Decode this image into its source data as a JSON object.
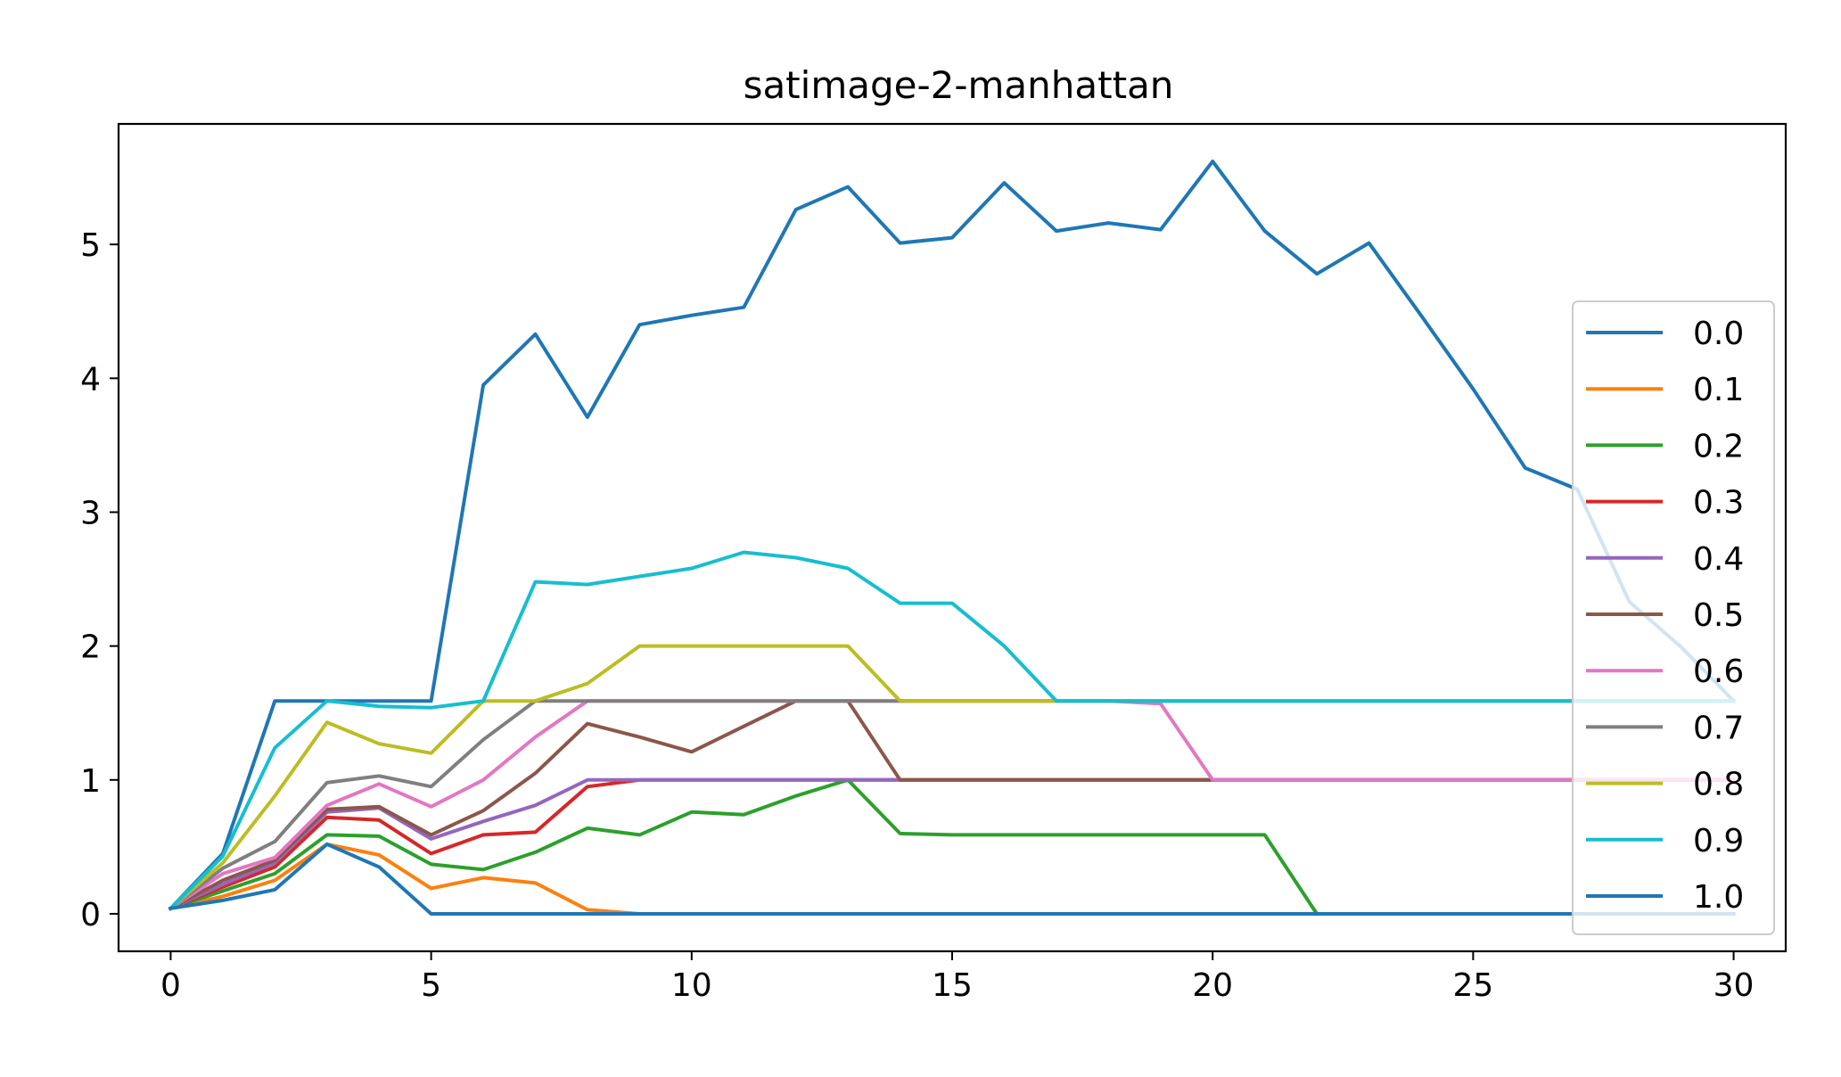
{
  "chart_data": {
    "type": "line",
    "title": "satimage-2-manhattan",
    "xlabel": "",
    "ylabel": "",
    "xlim": [
      -1,
      31
    ],
    "ylim": [
      -0.28,
      5.9
    ],
    "xticks": [
      0,
      5,
      10,
      15,
      20,
      25,
      30
    ],
    "yticks": [
      0,
      1,
      2,
      3,
      4,
      5
    ],
    "grid": false,
    "legend_position": "right",
    "x": [
      0,
      1,
      2,
      3,
      4,
      5,
      6,
      7,
      8,
      9,
      10,
      11,
      12,
      13,
      14,
      15,
      16,
      17,
      18,
      19,
      20,
      21,
      22,
      23,
      24,
      25,
      26,
      27,
      28,
      29,
      30
    ],
    "series": [
      {
        "name": "0.0",
        "color": "#1f77b4",
        "values": [
          0.04,
          0.45,
          1.59,
          1.59,
          1.59,
          1.59,
          3.95,
          4.33,
          3.71,
          4.4,
          4.47,
          4.53,
          5.26,
          5.43,
          5.01,
          5.05,
          5.46,
          5.1,
          5.16,
          5.11,
          5.62,
          5.1,
          4.78,
          5.01,
          4.47,
          3.92,
          3.33,
          3.17,
          2.33,
          1.99,
          1.59
        ]
      },
      {
        "name": "0.1",
        "color": "#ff7f0e",
        "values": [
          0.04,
          0.13,
          0.25,
          0.52,
          0.44,
          0.19,
          0.27,
          0.23,
          0.03,
          0,
          0,
          0,
          0,
          0,
          0,
          0,
          0,
          0,
          0,
          0,
          0,
          0,
          0,
          0,
          0,
          0,
          0,
          0,
          0,
          0,
          0
        ]
      },
      {
        "name": "0.2",
        "color": "#2ca02c",
        "values": [
          0.04,
          0.17,
          0.3,
          0.59,
          0.58,
          0.37,
          0.33,
          0.46,
          0.64,
          0.59,
          0.76,
          0.74,
          0.88,
          1.0,
          0.6,
          0.59,
          0.59,
          0.59,
          0.59,
          0.59,
          0.59,
          0.59,
          0,
          0,
          0,
          0,
          0,
          0,
          0,
          0,
          0
        ]
      },
      {
        "name": "0.3",
        "color": "#d62728",
        "values": [
          0.04,
          0.2,
          0.35,
          0.72,
          0.7,
          0.45,
          0.59,
          0.61,
          0.95,
          1.0,
          1.0,
          1.0,
          1.0,
          1.0,
          1.0,
          1.0,
          1.0,
          1.0,
          1.0,
          1.0,
          1.0,
          1.0,
          1.0,
          1.0,
          1.0,
          1.0,
          1.0,
          1.0,
          1.0,
          1.0,
          1.0
        ]
      },
      {
        "name": "0.4",
        "color": "#9467bd",
        "values": [
          0.04,
          0.22,
          0.38,
          0.76,
          0.79,
          0.56,
          0.69,
          0.81,
          1.0,
          1.0,
          1.0,
          1.0,
          1.0,
          1.0,
          1.0,
          1.0,
          1.0,
          1.0,
          1.0,
          1.0,
          1.0,
          1.0,
          1.0,
          1.0,
          1.0,
          1.0,
          1.0,
          1.0,
          1.0,
          1.0,
          1.0
        ]
      },
      {
        "name": "0.5",
        "color": "#8c564b",
        "values": [
          0.04,
          0.25,
          0.4,
          0.78,
          0.8,
          0.59,
          0.77,
          1.05,
          1.42,
          1.32,
          1.21,
          1.4,
          1.59,
          1.59,
          1.0,
          1.0,
          1.0,
          1.0,
          1.0,
          1.0,
          1.0,
          1.0,
          1.0,
          1.0,
          1.0,
          1.0,
          1.0,
          1.0,
          1.0,
          1.0,
          1.0
        ]
      },
      {
        "name": "0.6",
        "color": "#e377c2",
        "values": [
          0.04,
          0.3,
          0.42,
          0.81,
          0.97,
          0.8,
          1.0,
          1.32,
          1.59,
          1.59,
          1.59,
          1.59,
          1.59,
          1.59,
          1.59,
          1.59,
          1.59,
          1.59,
          1.59,
          1.57,
          1.0,
          1.0,
          1.0,
          1.0,
          1.0,
          1.0,
          1.0,
          1.0,
          1.0,
          1.0,
          1.0
        ]
      },
      {
        "name": "0.7",
        "color": "#7f7f7f",
        "values": [
          0.04,
          0.34,
          0.54,
          0.98,
          1.03,
          0.95,
          1.3,
          1.59,
          1.59,
          1.59,
          1.59,
          1.59,
          1.59,
          1.59,
          1.59,
          1.59,
          1.59,
          1.59,
          1.59,
          1.59,
          1.59,
          1.59,
          1.59,
          1.59,
          1.59,
          1.59,
          1.59,
          1.59,
          1.59,
          1.59,
          1.59
        ]
      },
      {
        "name": "0.8",
        "color": "#bcbd22",
        "values": [
          0.04,
          0.38,
          0.88,
          1.43,
          1.27,
          1.2,
          1.59,
          1.59,
          1.72,
          2.0,
          2.0,
          2.0,
          2.0,
          2.0,
          1.59,
          1.59,
          1.59,
          1.59,
          1.59,
          1.59,
          1.59,
          1.59,
          1.59,
          1.59,
          1.59,
          1.59,
          1.59,
          1.59,
          1.59,
          1.59,
          1.59
        ]
      },
      {
        "name": "0.9",
        "color": "#17becf",
        "values": [
          0.04,
          0.43,
          1.24,
          1.59,
          1.55,
          1.54,
          1.59,
          2.48,
          2.46,
          2.52,
          2.58,
          2.7,
          2.66,
          2.58,
          2.32,
          2.32,
          2.0,
          1.59,
          1.59,
          1.59,
          1.59,
          1.59,
          1.59,
          1.59,
          1.59,
          1.59,
          1.59,
          1.59,
          1.59,
          1.59,
          1.59
        ]
      },
      {
        "name": "1.0",
        "color": "#1f77b4",
        "values": [
          0.04,
          0.1,
          0.18,
          0.52,
          0.35,
          0,
          0,
          0,
          0,
          0,
          0,
          0,
          0,
          0,
          0,
          0,
          0,
          0,
          0,
          0,
          0,
          0,
          0,
          0,
          0,
          0,
          0,
          0,
          0,
          0,
          0
        ]
      }
    ]
  }
}
